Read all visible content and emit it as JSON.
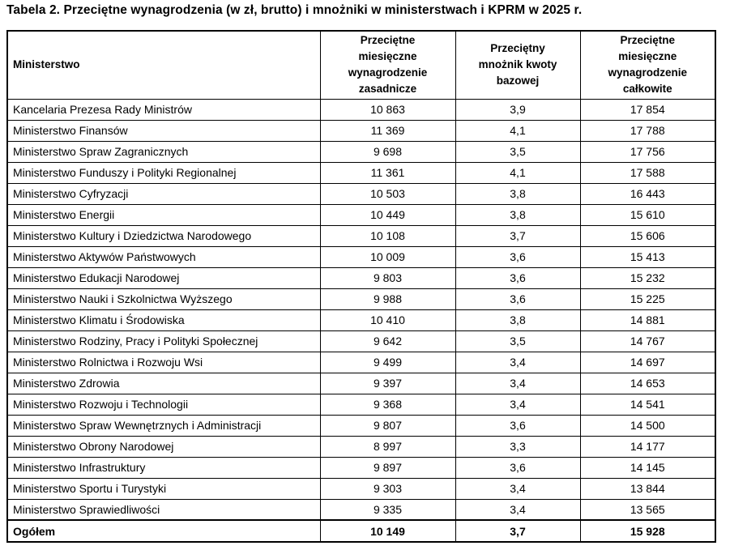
{
  "title": "Tabela 2. Przeciętne wynagrodzenia (w zł, brutto) i mnożniki w ministerstwach i KPRM w 2025 r.",
  "table": {
    "headers": [
      "Ministerstwo",
      "Przeciętne\nmiesięczne\nwynagrodzenie\nzasadnicze",
      "Przeciętny\nmnożnik kwoty\nbazowej",
      "Przeciętne\nmiesięczne\nwynagrodzenie\ncałkowite"
    ],
    "rows": [
      {
        "ministry": "Kancelaria Prezesa Rady Ministrów",
        "base_salary": "10 863",
        "multiplier": "3,9",
        "total_salary": "17 854"
      },
      {
        "ministry": "Ministerstwo Finansów",
        "base_salary": "11 369",
        "multiplier": "4,1",
        "total_salary": "17 788"
      },
      {
        "ministry": "Ministerstwo Spraw Zagranicznych",
        "base_salary": "9 698",
        "multiplier": "3,5",
        "total_salary": "17 756"
      },
      {
        "ministry": "Ministerstwo Funduszy i Polityki Regionalnej",
        "base_salary": "11 361",
        "multiplier": "4,1",
        "total_salary": "17 588"
      },
      {
        "ministry": "Ministerstwo Cyfryzacji",
        "base_salary": "10 503",
        "multiplier": "3,8",
        "total_salary": "16 443"
      },
      {
        "ministry": "Ministerstwo Energii",
        "base_salary": "10 449",
        "multiplier": "3,8",
        "total_salary": "15 610"
      },
      {
        "ministry": "Ministerstwo Kultury i Dziedzictwa Narodowego",
        "base_salary": "10 108",
        "multiplier": "3,7",
        "total_salary": "15 606"
      },
      {
        "ministry": "Ministerstwo Aktywów Państwowych",
        "base_salary": "10 009",
        "multiplier": "3,6",
        "total_salary": "15 413"
      },
      {
        "ministry": "Ministerstwo Edukacji Narodowej",
        "base_salary": "9 803",
        "multiplier": "3,6",
        "total_salary": "15 232"
      },
      {
        "ministry": "Ministerstwo Nauki i Szkolnictwa Wyższego",
        "base_salary": "9 988",
        "multiplier": "3,6",
        "total_salary": "15 225"
      },
      {
        "ministry": "Ministerstwo Klimatu i Środowiska",
        "base_salary": "10 410",
        "multiplier": "3,8",
        "total_salary": "14 881"
      },
      {
        "ministry": "Ministerstwo Rodziny, Pracy i Polityki Społecznej",
        "base_salary": "9 642",
        "multiplier": "3,5",
        "total_salary": "14 767"
      },
      {
        "ministry": "Ministerstwo Rolnictwa i Rozwoju Wsi",
        "base_salary": "9 499",
        "multiplier": "3,4",
        "total_salary": "14 697"
      },
      {
        "ministry": "Ministerstwo Zdrowia",
        "base_salary": "9 397",
        "multiplier": "3,4",
        "total_salary": "14 653"
      },
      {
        "ministry": "Ministerstwo Rozwoju i Technologii",
        "base_salary": "9 368",
        "multiplier": "3,4",
        "total_salary": "14 541"
      },
      {
        "ministry": "Ministerstwo Spraw Wewnętrznych i Administracji",
        "base_salary": "9 807",
        "multiplier": "3,6",
        "total_salary": "14 500"
      },
      {
        "ministry": "Ministerstwo Obrony Narodowej",
        "base_salary": "8 997",
        "multiplier": "3,3",
        "total_salary": "14 177"
      },
      {
        "ministry": "Ministerstwo Infrastruktury",
        "base_salary": "9 897",
        "multiplier": "3,6",
        "total_salary": "14 145"
      },
      {
        "ministry": "Ministerstwo Sportu i Turystyki",
        "base_salary": "9 303",
        "multiplier": "3,4",
        "total_salary": "13 844"
      },
      {
        "ministry": "Ministerstwo Sprawiedliwości",
        "base_salary": "9 335",
        "multiplier": "3,4",
        "total_salary": "13 565"
      }
    ],
    "total": {
      "label": "Ogółem",
      "base_salary": "10 149",
      "multiplier": "3,7",
      "total_salary": "15 928"
    }
  }
}
